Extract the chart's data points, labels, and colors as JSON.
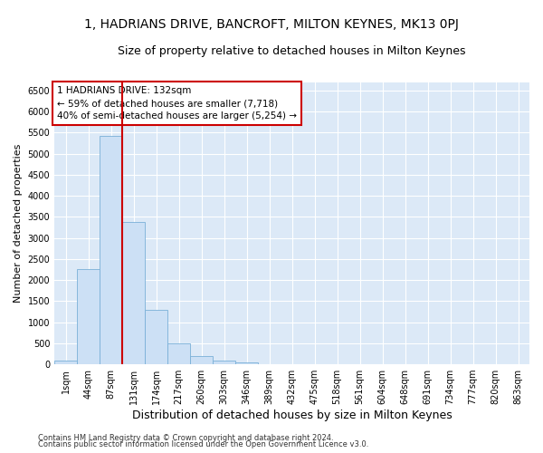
{
  "title1": "1, HADRIANS DRIVE, BANCROFT, MILTON KEYNES, MK13 0PJ",
  "title2": "Size of property relative to detached houses in Milton Keynes",
  "xlabel": "Distribution of detached houses by size in Milton Keynes",
  "ylabel": "Number of detached properties",
  "footnote1": "Contains HM Land Registry data © Crown copyright and database right 2024.",
  "footnote2": "Contains public sector information licensed under the Open Government Licence v3.0.",
  "bin_labels": [
    "1sqm",
    "44sqm",
    "87sqm",
    "131sqm",
    "174sqm",
    "217sqm",
    "260sqm",
    "303sqm",
    "346sqm",
    "389sqm",
    "432sqm",
    "475sqm",
    "518sqm",
    "561sqm",
    "604sqm",
    "648sqm",
    "691sqm",
    "734sqm",
    "777sqm",
    "820sqm",
    "863sqm"
  ],
  "bar_values": [
    80,
    2250,
    5430,
    3380,
    1290,
    490,
    190,
    80,
    40,
    0,
    0,
    0,
    0,
    0,
    0,
    0,
    0,
    0,
    0,
    0,
    0
  ],
  "bar_color": "#cce0f5",
  "bar_edge_color": "#7ab0d8",
  "annotation_box_color": "#cc0000",
  "annotation_text": "1 HADRIANS DRIVE: 132sqm\n← 59% of detached houses are smaller (7,718)\n40% of semi-detached houses are larger (5,254) →",
  "ylim": [
    0,
    6700
  ],
  "yticks": [
    0,
    500,
    1000,
    1500,
    2000,
    2500,
    3000,
    3500,
    4000,
    4500,
    5000,
    5500,
    6000,
    6500
  ],
  "background_color": "#dce9f7",
  "fig_background_color": "#ffffff",
  "grid_color": "#ffffff",
  "title1_fontsize": 10,
  "title2_fontsize": 9,
  "xlabel_fontsize": 9,
  "ylabel_fontsize": 8,
  "tick_fontsize": 7,
  "annotation_fontsize": 7.5,
  "footnote_fontsize": 6
}
